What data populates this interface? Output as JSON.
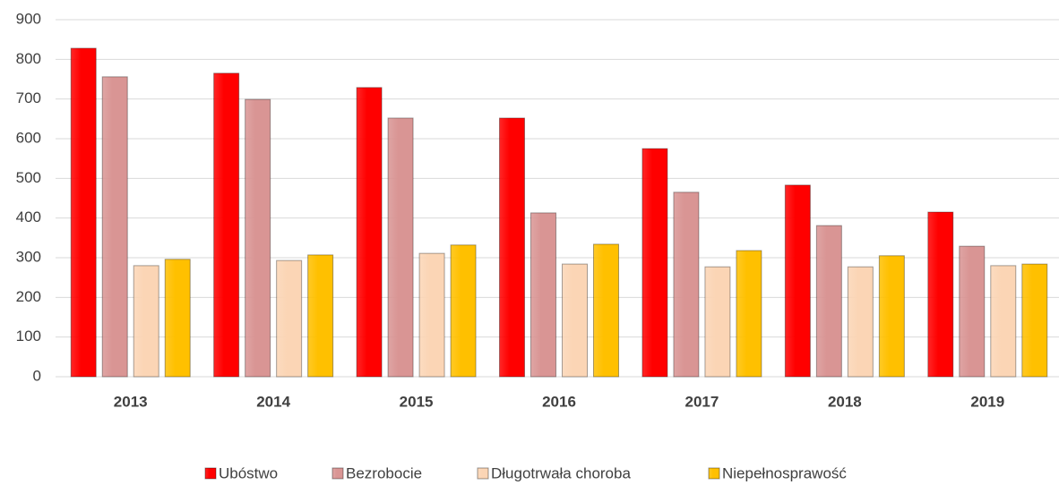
{
  "chart_data": {
    "type": "bar",
    "categories": [
      "2013",
      "2014",
      "2015",
      "2016",
      "2017",
      "2018",
      "2019"
    ],
    "series": [
      {
        "name": "Ubóstwo",
        "color": "#ff0000",
        "values": [
          828,
          765,
          729,
          652,
          575,
          483,
          415
        ]
      },
      {
        "name": "Bezrobocie",
        "color": "#d99594",
        "values": [
          756,
          699,
          652,
          413,
          465,
          381,
          329
        ]
      },
      {
        "name": "Długotrwała choroba",
        "color": "#fbd5b5",
        "values": [
          280,
          293,
          311,
          284,
          277,
          277,
          280
        ]
      },
      {
        "name": "Niepełnosprawość",
        "color": "#ffc000",
        "values": [
          296,
          307,
          332,
          334,
          318,
          305,
          284
        ]
      }
    ],
    "ylim": [
      0,
      900
    ],
    "yticks": [
      0,
      100,
      200,
      300,
      400,
      500,
      600,
      700,
      800,
      900
    ],
    "grid": true,
    "legend": "bottom"
  }
}
